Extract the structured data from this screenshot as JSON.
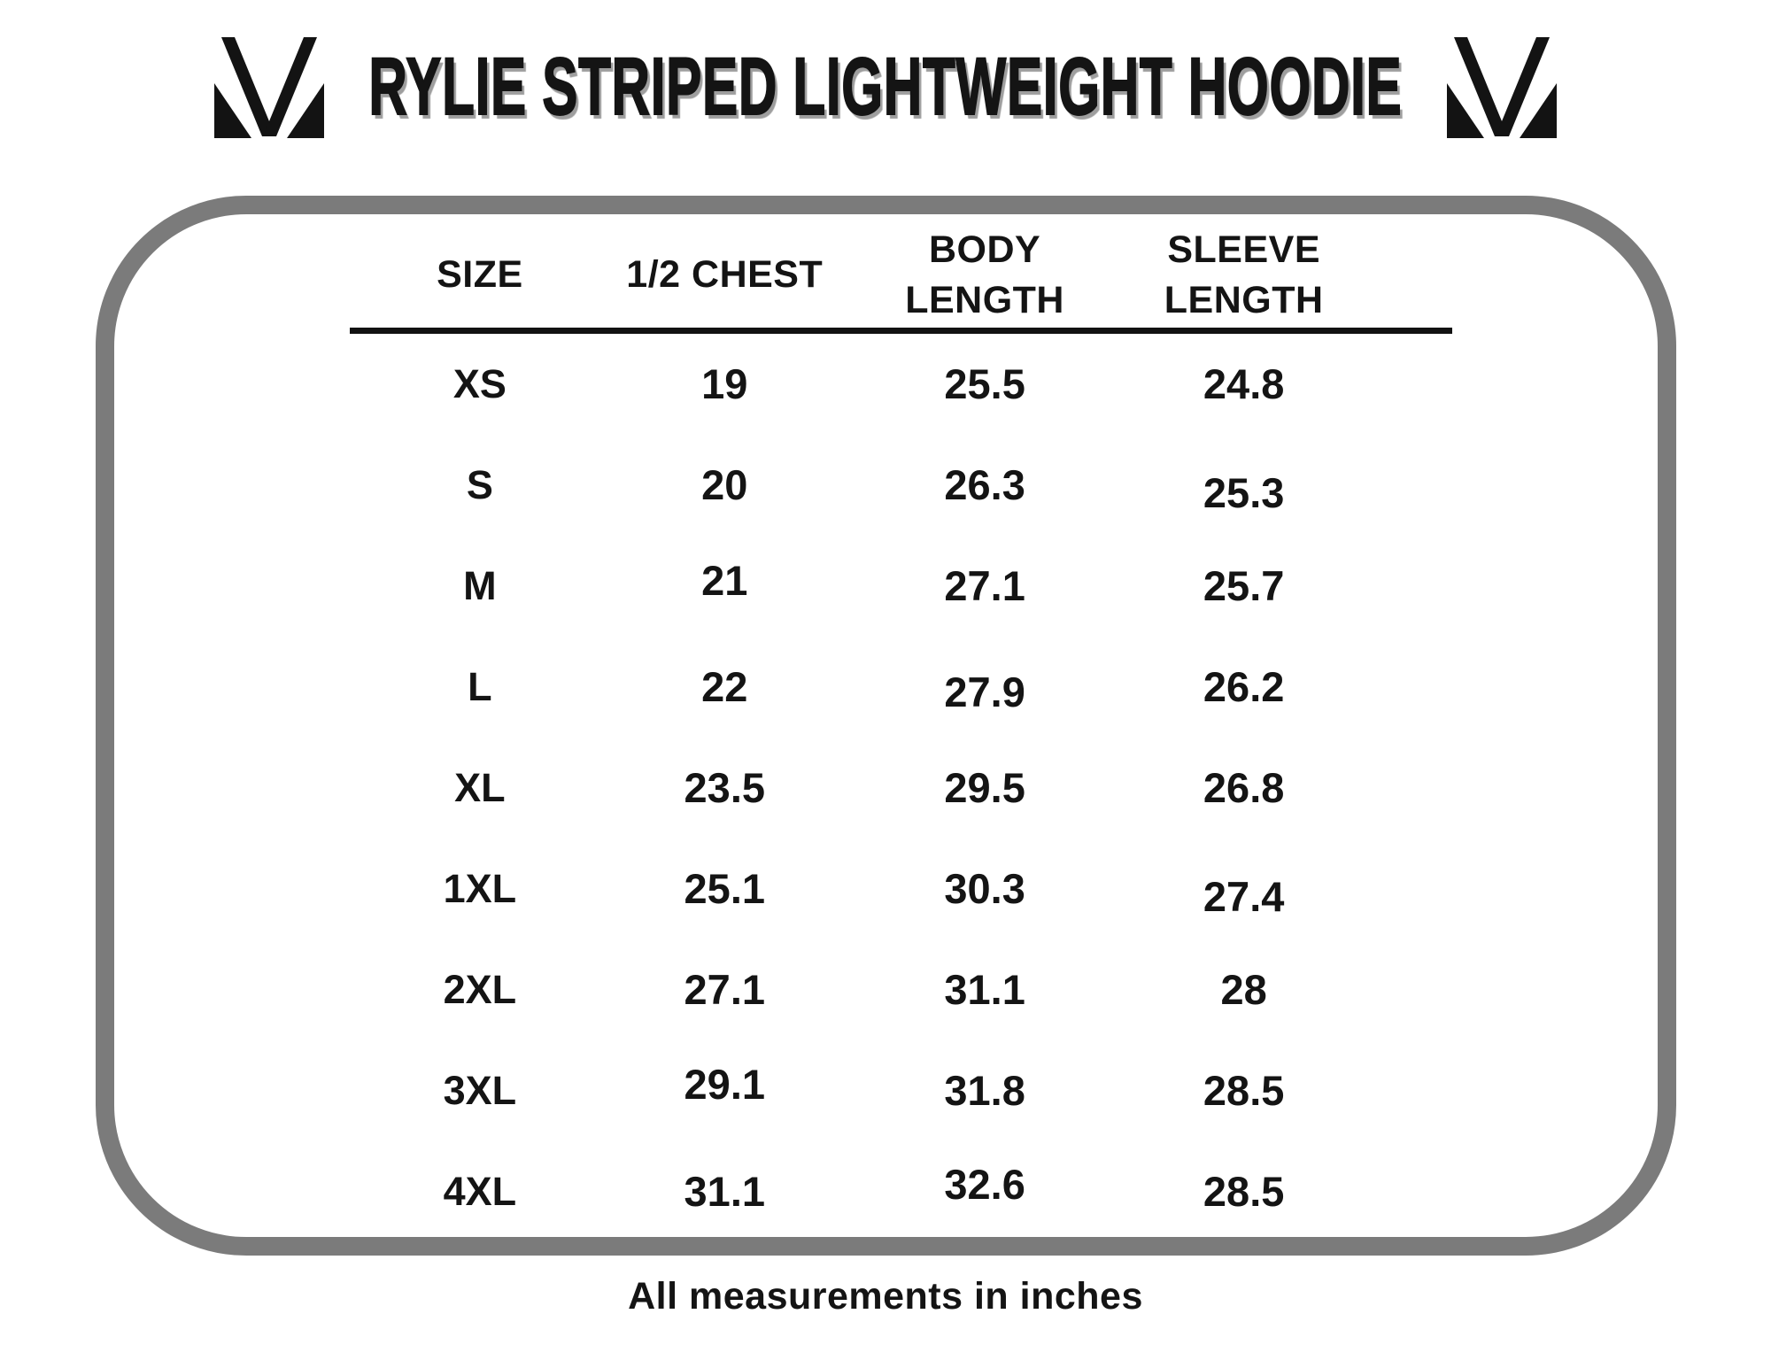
{
  "title": "RYLIE STRIPED LIGHTWEIGHT HOODIE",
  "brand_logo": "mv-monogram",
  "footer_note": "All measurements in inches",
  "colors": {
    "text": "#141414",
    "panel_border": "#7b7b7b",
    "title_shadow": "#9e9e9e",
    "background": "#ffffff"
  },
  "chart_data": {
    "type": "table",
    "title": "RYLIE STRIPED LIGHTWEIGHT HOODIE",
    "columns": [
      "SIZE",
      "1/2 CHEST",
      "BODY LENGTH",
      "SLEEVE LENGTH"
    ],
    "column_labels_display": [
      "SIZE",
      "1/2 CHEST",
      "BODY\nLENGTH",
      "SLEEVE\nLENGTH"
    ],
    "rows": [
      [
        "XS",
        "19",
        "25.5",
        "24.8"
      ],
      [
        "S",
        "20",
        "26.3",
        "25.3"
      ],
      [
        "M",
        "21",
        "27.1",
        "25.7"
      ],
      [
        "L",
        "22",
        "27.9",
        "26.2"
      ],
      [
        "XL",
        "23.5",
        "29.5",
        "26.8"
      ],
      [
        "1XL",
        "25.1",
        "30.3",
        "27.4"
      ],
      [
        "2XL",
        "27.1",
        "31.1",
        "28"
      ],
      [
        "3XL",
        "29.1",
        "31.8",
        "28.5"
      ],
      [
        "4XL",
        "31.1",
        "32.6",
        "28.5"
      ]
    ],
    "note": "All measurements in inches",
    "units": "inches"
  }
}
